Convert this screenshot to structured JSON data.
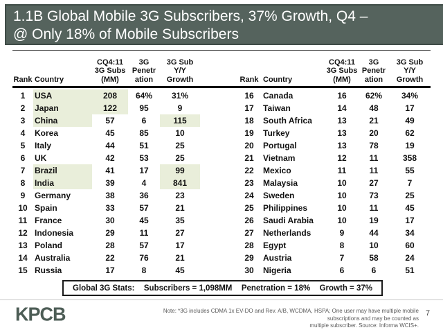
{
  "slide": {
    "title_line1": "1.1B Global Mobile 3G Subscribers, 37% Growth, Q4 –",
    "title_line2": "@ Only 18% of Mobile Subscribers",
    "page_number": "7"
  },
  "table": {
    "headers": {
      "rank": "Rank",
      "country": "Country",
      "subs": "CQ4:11\n3G Subs\n(MM)",
      "penetration": "3G\nPenetr\nation",
      "growth": "3G Sub\nY/Y\nGrowth"
    },
    "left_rows": [
      {
        "rank": "1",
        "country": "USA",
        "subs": "208",
        "penetration": "64%",
        "growth": "31%",
        "hl_country": true,
        "hl_subs": true,
        "hl_growth": false
      },
      {
        "rank": "2",
        "country": "Japan",
        "subs": "122",
        "penetration": "95",
        "growth": "9",
        "hl_country": true,
        "hl_subs": true,
        "hl_growth": false
      },
      {
        "rank": "3",
        "country": "China",
        "subs": "57",
        "penetration": "6",
        "growth": "115",
        "hl_country": true,
        "hl_subs": false,
        "hl_growth": true
      },
      {
        "rank": "4",
        "country": "Korea",
        "subs": "45",
        "penetration": "85",
        "growth": "10",
        "hl_country": false,
        "hl_subs": false,
        "hl_growth": false
      },
      {
        "rank": "5",
        "country": "Italy",
        "subs": "44",
        "penetration": "51",
        "growth": "25",
        "hl_country": false,
        "hl_subs": false,
        "hl_growth": false
      },
      {
        "rank": "6",
        "country": "UK",
        "subs": "42",
        "penetration": "53",
        "growth": "25",
        "hl_country": false,
        "hl_subs": false,
        "hl_growth": false
      },
      {
        "rank": "7",
        "country": "Brazil",
        "subs": "41",
        "penetration": "17",
        "growth": "99",
        "hl_country": true,
        "hl_subs": false,
        "hl_growth": true
      },
      {
        "rank": "8",
        "country": "India",
        "subs": "39",
        "penetration": "4",
        "growth": "841",
        "hl_country": true,
        "hl_subs": false,
        "hl_growth": true
      },
      {
        "rank": "9",
        "country": "Germany",
        "subs": "38",
        "penetration": "36",
        "growth": "23",
        "hl_country": false,
        "hl_subs": false,
        "hl_growth": false
      },
      {
        "rank": "10",
        "country": "Spain",
        "subs": "33",
        "penetration": "57",
        "growth": "21",
        "hl_country": false,
        "hl_subs": false,
        "hl_growth": false
      },
      {
        "rank": "11",
        "country": "France",
        "subs": "30",
        "penetration": "45",
        "growth": "35",
        "hl_country": false,
        "hl_subs": false,
        "hl_growth": false
      },
      {
        "rank": "12",
        "country": "Indonesia",
        "subs": "29",
        "penetration": "11",
        "growth": "27",
        "hl_country": false,
        "hl_subs": false,
        "hl_growth": false
      },
      {
        "rank": "13",
        "country": "Poland",
        "subs": "28",
        "penetration": "57",
        "growth": "17",
        "hl_country": false,
        "hl_subs": false,
        "hl_growth": false
      },
      {
        "rank": "14",
        "country": "Australia",
        "subs": "22",
        "penetration": "76",
        "growth": "21",
        "hl_country": false,
        "hl_subs": false,
        "hl_growth": false
      },
      {
        "rank": "15",
        "country": "Russia",
        "subs": "17",
        "penetration": "8",
        "growth": "45",
        "hl_country": false,
        "hl_subs": false,
        "hl_growth": false
      }
    ],
    "right_rows": [
      {
        "rank": "16",
        "country": "Canada",
        "subs": "16",
        "penetration": "62%",
        "growth": "34%"
      },
      {
        "rank": "17",
        "country": "Taiwan",
        "subs": "14",
        "penetration": "48",
        "growth": "17"
      },
      {
        "rank": "18",
        "country": "South Africa",
        "subs": "13",
        "penetration": "21",
        "growth": "49"
      },
      {
        "rank": "19",
        "country": "Turkey",
        "subs": "13",
        "penetration": "20",
        "growth": "62"
      },
      {
        "rank": "20",
        "country": "Portugal",
        "subs": "13",
        "penetration": "78",
        "growth": "19"
      },
      {
        "rank": "21",
        "country": "Vietnam",
        "subs": "12",
        "penetration": "11",
        "growth": "358"
      },
      {
        "rank": "22",
        "country": "Mexico",
        "subs": "11",
        "penetration": "11",
        "growth": "55"
      },
      {
        "rank": "23",
        "country": "Malaysia",
        "subs": "10",
        "penetration": "27",
        "growth": "7"
      },
      {
        "rank": "24",
        "country": "Sweden",
        "subs": "10",
        "penetration": "73",
        "growth": "25"
      },
      {
        "rank": "25",
        "country": "Philippines",
        "subs": "10",
        "penetration": "11",
        "growth": "45"
      },
      {
        "rank": "26",
        "country": "Saudi Arabia",
        "subs": "10",
        "penetration": "19",
        "growth": "17"
      },
      {
        "rank": "27",
        "country": "Netherlands",
        "subs": "9",
        "penetration": "44",
        "growth": "34"
      },
      {
        "rank": "28",
        "country": "Egypt",
        "subs": "8",
        "penetration": "10",
        "growth": "60"
      },
      {
        "rank": "29",
        "country": "Austria",
        "subs": "7",
        "penetration": "58",
        "growth": "24"
      },
      {
        "rank": "30",
        "country": "Nigeria",
        "subs": "6",
        "penetration": "6",
        "growth": "51"
      }
    ]
  },
  "stats": {
    "label": "Global 3G Stats:",
    "subscribers": "Subscribers = 1,098MM",
    "penetration": "Penetration = 18%",
    "growth": "Growth = 37%"
  },
  "footer": {
    "logo": "KPCB",
    "note": "Note: *3G includes CDMA 1x EV-DO and Rev. A/B, WCDMA, HSPA; One user may have multiple mobile subscriptions and may be counted as\nmultiple subscriber.  Source: Informa WCIS+."
  },
  "colors": {
    "title_bg": "#55635d",
    "title_border": "#3f4c47",
    "highlight": "#e9eeda",
    "logo": "#4d5d56"
  }
}
